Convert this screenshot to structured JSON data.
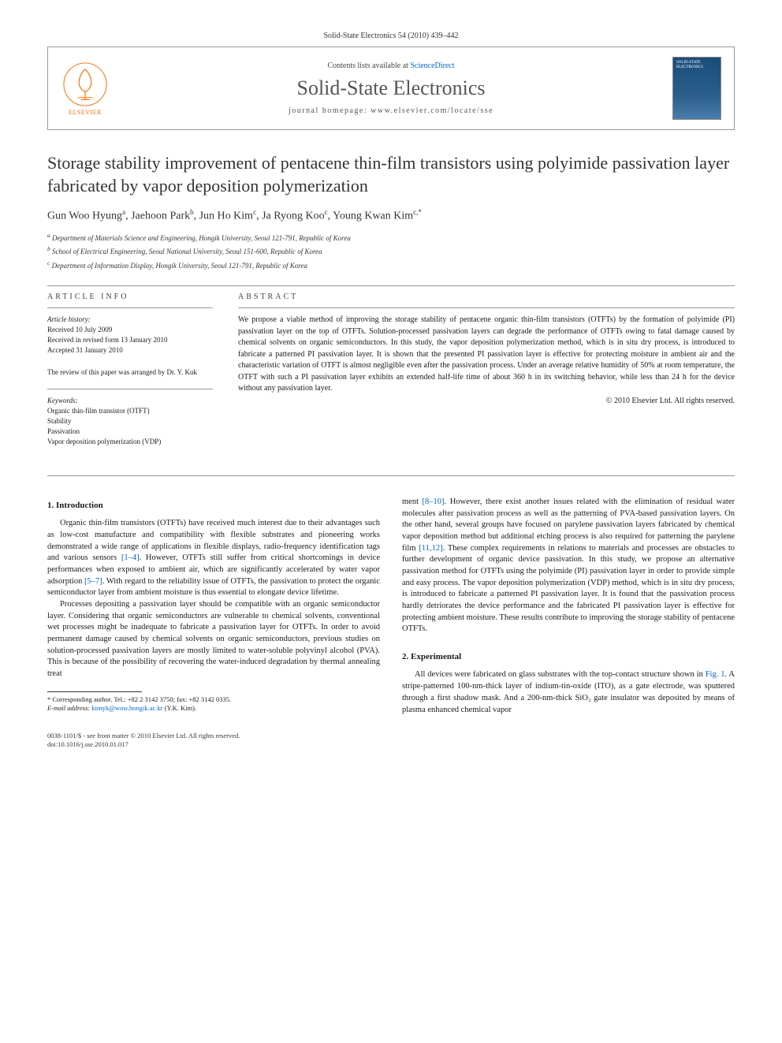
{
  "citation": "Solid-State Electronics 54 (2010) 439–442",
  "header": {
    "contents_prefix": "Contents lists available at ",
    "contents_link": "ScienceDirect",
    "journal_name": "Solid-State Electronics",
    "homepage_label": "journal homepage: www.elsevier.com/locate/sse",
    "publisher": "ELSEVIER",
    "cover_title": "SOLID-STATE ELECTRONICS"
  },
  "title": "Storage stability improvement of pentacene thin-film transistors using polyimide passivation layer fabricated by vapor deposition polymerization",
  "authors_html": "Gun Woo Hyung<sup>a</sup>, Jaehoon Park<sup>b</sup>, Jun Ho Kim<sup>c</sup>, Ja Ryong Koo<sup>c</sup>, Young Kwan Kim<sup>c,*</sup>",
  "affiliations": [
    "a Department of Materials Science and Engineering, Hongik University, Seoul 121-791, Republic of Korea",
    "b School of Electrical Engineering, Seoul National University, Seoul 151-600, Republic of Korea",
    "c Department of Information Display, Hongik University, Seoul 121-791, Republic of Korea"
  ],
  "article_info": {
    "heading": "ARTICLE INFO",
    "history_label": "Article history:",
    "history": [
      "Received 10 July 2009",
      "Received in revised form 13 January 2010",
      "Accepted 31 January 2010"
    ],
    "review_note": "The review of this paper was arranged by Dr. Y. Kuk",
    "keywords_label": "Keywords:",
    "keywords": [
      "Organic thin-film transistor (OTFT)",
      "Stability",
      "Passivation",
      "Vapor deposition polymerization (VDP)"
    ]
  },
  "abstract": {
    "heading": "ABSTRACT",
    "text": "We propose a viable method of improving the storage stability of pentacene organic thin-film transistors (OTFTs) by the formation of polyimide (PI) passivation layer on the top of OTFTs. Solution-processed passivation layers can degrade the performance of OTFTs owing to fatal damage caused by chemical solvents on organic semiconductors. In this study, the vapor deposition polymerization method, which is in situ dry process, is introduced to fabricate a patterned PI passivation layer. It is shown that the presented PI passivation layer is effective for protecting moisture in ambient air and the characteristic variation of OTFT is almost negligible even after the passivation process. Under an average relative humidity of 50% at room temperature, the OTFT with such a PI passivation layer exhibits an extended half-life time of about 360 h in its switching behavior, while less than 24 h for the device without any passivation layer.",
    "copyright": "© 2010 Elsevier Ltd. All rights reserved."
  },
  "sections": {
    "intro_heading": "1. Introduction",
    "intro_p1": "Organic thin-film transistors (OTFTs) have received much interest due to their advantages such as low-cost manufacture and compatibility with flexible substrates and pioneering works demonstrated a wide range of applications in flexible displays, radio-frequency identification tags and various sensors ",
    "intro_ref1": "[1–4]",
    "intro_p1b": ". However, OTFTs still suffer from critical shortcomings in device performances when exposed to ambient air, which are significantly accelerated by water vapor adsorption ",
    "intro_ref2": "[5–7]",
    "intro_p1c": ". With regard to the reliability issue of OTFTs, the passivation to protect the organic semiconductor layer from ambient moisture is thus essential to elongate device lifetime.",
    "intro_p2": "Processes depositing a passivation layer should be compatible with an organic semiconductor layer. Considering that organic semiconductors are vulnerable to chemical solvents, conventional wet processes might be inadequate to fabricate a passivation layer for OTFTs. In order to avoid permanent damage caused by chemical solvents on organic semiconductors, previous studies on solution-processed passivation layers are mostly limited to water-soluble polyvinyl alcohol (PVA). This is because of the possibility of recovering the water-induced degradation by thermal annealing treat",
    "col2_p1a": "ment ",
    "col2_ref1": "[8–10]",
    "col2_p1b": ". However, there exist another issues related with the elimination of residual water molecules after passivation process as well as the patterning of PVA-based passivation layers. On the other hand, several groups have focused on parylene passivation layers fabricated by chemical vapor deposition method but additional etching process is also required for patterning the parylene film ",
    "col2_ref2": "[11,12]",
    "col2_p1c": ". These complex requirements in relations to materials and processes are obstacles to further development of organic device passivation. In this study, we propose an alternative passivation method for OTFTs using the polyimide (PI) passivation layer in order to provide simple and easy process. The vapor deposition polymerization (VDP) method, which is in situ dry process, is introduced to fabricate a patterned PI passivation layer. It is found that the passivation process hardly detriorates the device performance and the fabricated PI passivation layer is effective for protecting ambient moisture. These results contribute to improving the storage stability of pentacene OTFTs.",
    "exp_heading": "2. Experimental",
    "exp_p1a": "All devices were fabricated on glass substrates with the top-contact structure shown in ",
    "exp_fig_ref": "Fig. 1",
    "exp_p1b": ". A stripe-patterned 100-nm-thick layer of indium-tin-oxide (ITO), as a gate electrode, was sputtered through a first shadow mask. And a 200-nm-thick SiO₂ gate insulator was deposited by means of plasma enhanced chemical vapor"
  },
  "footnote": {
    "corr": "* Corresponding author. Tel.: +82 2 3142 3750; fax: +82 3142 0335.",
    "email_label": "E-mail address: ",
    "email": "kimyk@wow.hongik.ac.kr",
    "email_suffix": " (Y.K. Kim)."
  },
  "footer": {
    "line1": "0038-1101/$ - see front matter © 2010 Elsevier Ltd. All rights reserved.",
    "line2": "doi:10.1016/j.sse.2010.01.017"
  },
  "colors": {
    "link": "#0066cc",
    "elsevier_orange": "#ff6c00",
    "text": "#1a1a1a",
    "border": "#999999"
  }
}
